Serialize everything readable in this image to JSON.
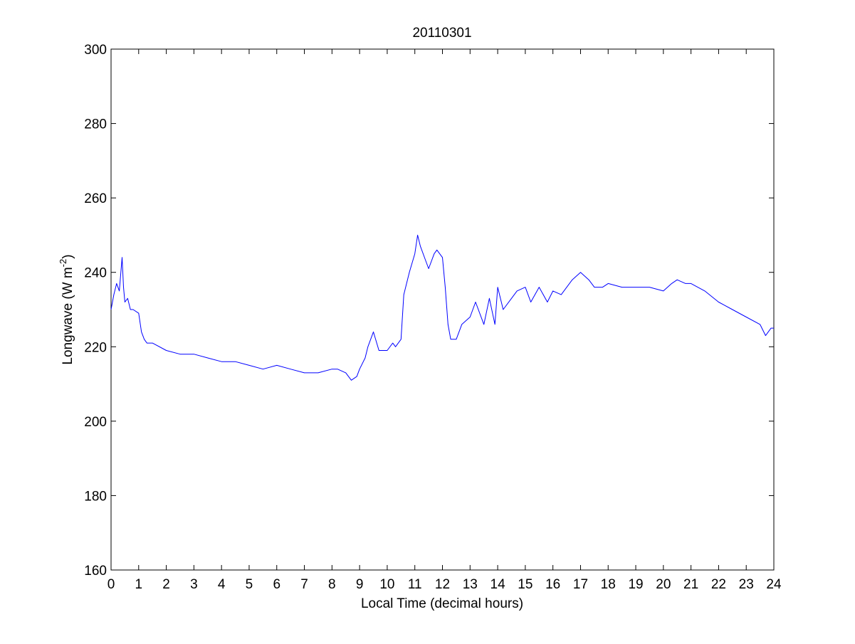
{
  "chart_data": {
    "type": "line",
    "title": "20110301",
    "xlabel": "Local Time (decimal hours)",
    "ylabel_main": "Longwave (W m",
    "ylabel_sup": "-2",
    "ylabel_close": ")",
    "xlim": [
      0,
      24
    ],
    "ylim": [
      160,
      300
    ],
    "xticks": [
      0,
      1,
      2,
      3,
      4,
      5,
      6,
      7,
      8,
      9,
      10,
      11,
      12,
      13,
      14,
      15,
      16,
      17,
      18,
      19,
      20,
      21,
      22,
      23,
      24
    ],
    "yticks": [
      160,
      180,
      200,
      220,
      240,
      260,
      280,
      300
    ],
    "grid": false,
    "series": [
      {
        "color": "#0000ff",
        "x": [
          0,
          0.1,
          0.2,
          0.3,
          0.4,
          0.45,
          0.5,
          0.6,
          0.7,
          0.8,
          1.0,
          1.1,
          1.2,
          1.3,
          1.5,
          2.0,
          2.5,
          3.0,
          3.5,
          4.0,
          4.5,
          5.0,
          5.5,
          6.0,
          6.5,
          7.0,
          7.5,
          8.0,
          8.2,
          8.5,
          8.7,
          8.9,
          9.0,
          9.2,
          9.3,
          9.5,
          9.7,
          10.0,
          10.2,
          10.3,
          10.5,
          10.6,
          10.8,
          11.0,
          11.1,
          11.2,
          11.4,
          11.5,
          11.7,
          11.8,
          12.0,
          12.1,
          12.2,
          12.3,
          12.5,
          12.7,
          13.0,
          13.2,
          13.5,
          13.7,
          13.9,
          14.0,
          14.2,
          14.5,
          14.7,
          15.0,
          15.2,
          15.5,
          15.8,
          16.0,
          16.3,
          16.7,
          17.0,
          17.3,
          17.5,
          17.8,
          18.0,
          18.5,
          19.0,
          19.5,
          20.0,
          20.3,
          20.5,
          20.8,
          21.0,
          21.5,
          22.0,
          22.5,
          23.0,
          23.5,
          23.7,
          23.9,
          24.0
        ],
        "y": [
          230,
          234,
          237,
          235,
          244,
          236,
          232,
          233,
          230,
          230,
          229,
          224,
          222,
          221,
          221,
          219,
          218,
          218,
          217,
          216,
          216,
          215,
          214,
          215,
          214,
          213,
          213,
          214,
          214,
          213,
          211,
          212,
          214,
          217,
          220,
          224,
          219,
          219,
          221,
          220,
          222,
          234,
          240,
          245,
          250,
          247,
          243,
          241,
          245,
          246,
          244,
          236,
          226,
          222,
          222,
          226,
          228,
          232,
          226,
          233,
          226,
          236,
          230,
          233,
          235,
          236,
          232,
          236,
          232,
          235,
          234,
          238,
          240,
          238,
          236,
          236,
          237,
          236,
          236,
          236,
          235,
          237,
          238,
          237,
          237,
          235,
          232,
          230,
          228,
          226,
          223,
          225,
          225
        ]
      }
    ]
  }
}
